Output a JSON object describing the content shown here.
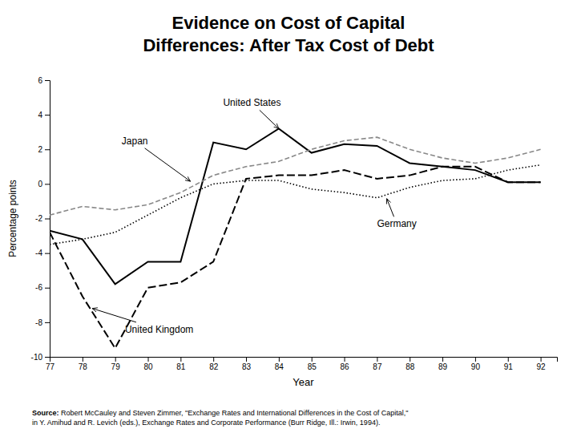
{
  "chart_data": {
    "type": "line",
    "title": "Evidence on Cost of Capital\nDifferences: After Tax Cost of Debt",
    "xlabel": "Year",
    "ylabel": "Percentage points",
    "xlim": [
      77,
      92.5
    ],
    "ylim": [
      -10,
      6
    ],
    "xticks": [
      77,
      78,
      79,
      80,
      81,
      82,
      83,
      84,
      85,
      86,
      87,
      88,
      89,
      90,
      91,
      92
    ],
    "yticks": [
      -10,
      -8,
      -6,
      -4,
      -2,
      0,
      2,
      4,
      6
    ],
    "grid": false,
    "x": [
      77,
      78,
      79,
      80,
      81,
      82,
      83,
      84,
      85,
      86,
      87,
      88,
      89,
      90,
      91,
      92
    ],
    "series": [
      {
        "color": "#000000",
        "line_style": "solid",
        "values": [
          -2.7,
          -3.2,
          -5.8,
          -4.5,
          -4.5,
          2.4,
          2.0,
          3.2,
          1.8,
          2.3,
          2.2,
          1.2,
          1.0,
          0.8,
          0.1,
          0.1
        ]
      },
      {
        "color": "#888888",
        "line_style": "dashed",
        "values": [
          -1.8,
          -1.3,
          -1.5,
          -1.2,
          -0.5,
          0.5,
          1.0,
          1.3,
          2.0,
          2.5,
          2.7,
          2.0,
          1.5,
          1.2,
          1.5,
          2.0
        ]
      },
      {
        "color": "#000000",
        "line_style": "dotted",
        "values": [
          -3.5,
          -3.2,
          -2.8,
          -1.8,
          -0.8,
          0.0,
          0.2,
          0.2,
          -0.3,
          -0.5,
          -0.8,
          -0.2,
          0.2,
          0.3,
          0.8,
          1.1
        ]
      },
      {
        "color": "#000000",
        "line_style": "longdash",
        "values": [
          -2.8,
          -6.5,
          -9.5,
          -6.0,
          -5.7,
          -4.5,
          0.3,
          0.5,
          0.5,
          0.8,
          0.3,
          0.5,
          1.0,
          1.0,
          0.1,
          0.1
        ]
      }
    ],
    "annotations": [
      {
        "text": "United States",
        "xy": [
          84.0,
          3.2
        ],
        "xytext": [
          82.3,
          4.5
        ]
      },
      {
        "text": "Japan",
        "xy": [
          81.3,
          0.15
        ],
        "xytext": [
          79.2,
          2.3
        ]
      },
      {
        "text": "Germany",
        "xy": [
          87.3,
          -0.85
        ],
        "xytext": [
          87.0,
          -2.5
        ]
      },
      {
        "text": "United Kingdom",
        "xy": [
          78.3,
          -7.2
        ],
        "xytext": [
          79.3,
          -8.6
        ]
      }
    ],
    "source": [
      "Source:",
      " Robert McCauley and Steven Zimmer, \"Exchange Rates and International Differences in the Cost of Capital,\"\nin Y. Amihud and R. Levich (eds.), Exchange Rates and Corporate Performance (Burr Ridge, Ill.: Irwin, 1994)."
    ]
  }
}
